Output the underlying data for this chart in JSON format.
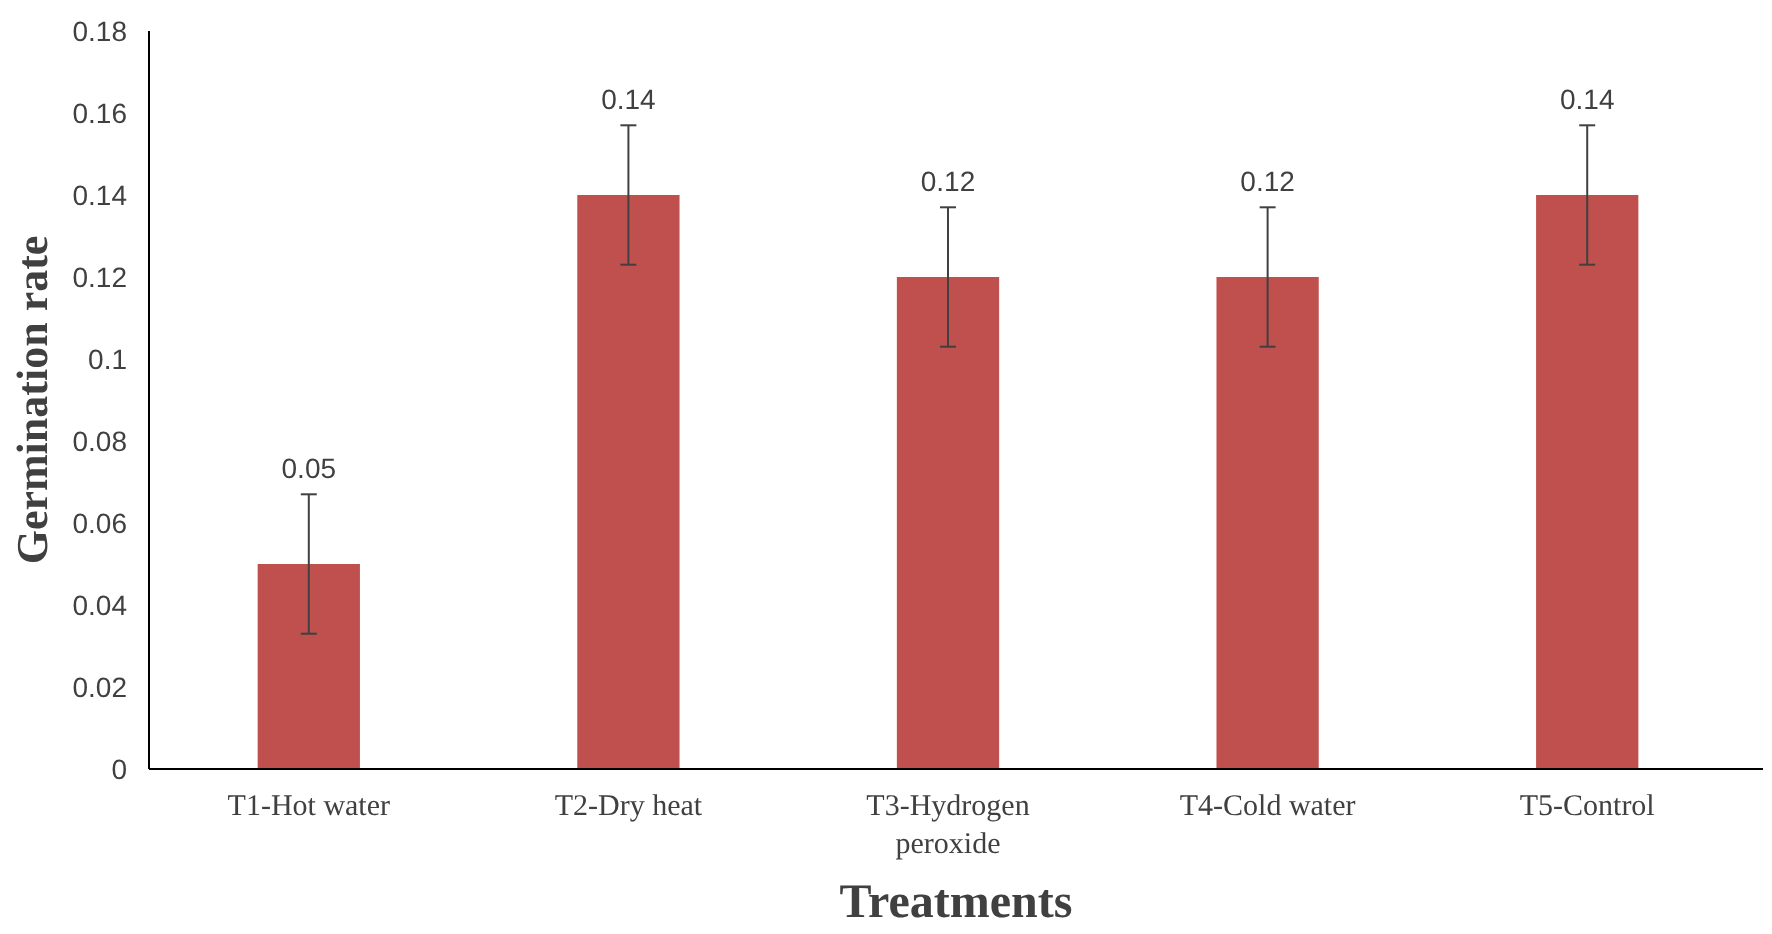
{
  "chart_data": {
    "type": "bar",
    "xlabel": "Treatments",
    "ylabel": "Germination rate",
    "categories": [
      "T1-Hot water",
      "T2-Dry heat",
      "T3-Hydrogen peroxide",
      "T4-Cold water",
      "T5-Control"
    ],
    "values": [
      0.05,
      0.14,
      0.12,
      0.12,
      0.14
    ],
    "errors": [
      0.017,
      0.017,
      0.017,
      0.017,
      0.017
    ],
    "color": "#c0504d",
    "data_labels": true,
    "grid": false,
    "ylim": [
      0,
      0.18
    ],
    "yticks": [
      0,
      0.02,
      0.04,
      0.06,
      0.08,
      0.1,
      0.12,
      0.14,
      0.16,
      0.18
    ]
  }
}
